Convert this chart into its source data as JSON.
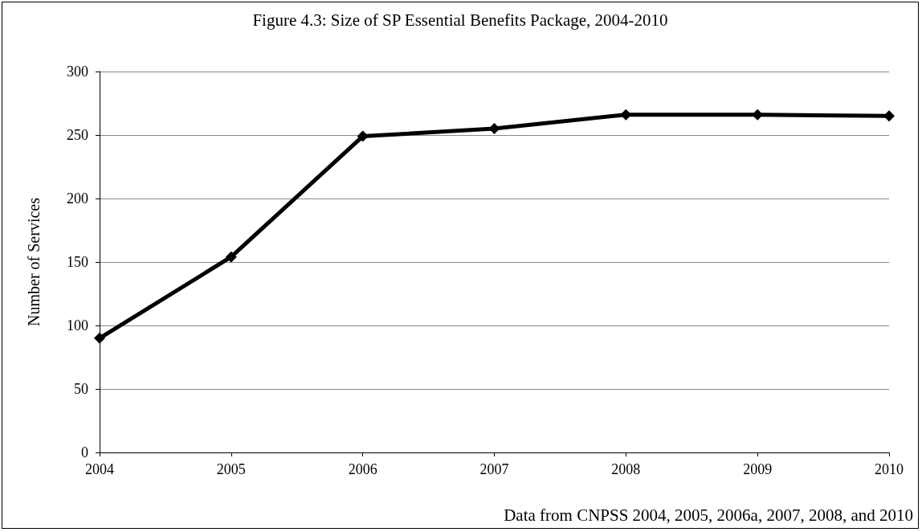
{
  "chart_data": {
    "type": "line",
    "title": "Figure 4.3: Size of SP Essential Benefits Package, 2004-2010",
    "ylabel": "Number of Services",
    "annotations": [
      "Data from CNPSS 2004, 2005, 2006a, 2007, 2008, and 2010"
    ],
    "categories": [
      "2004",
      "2005",
      "2006",
      "2007",
      "2008",
      "2009",
      "2010"
    ],
    "series": [
      {
        "color": "#000000",
        "values": [
          90,
          154,
          249,
          255,
          266,
          266,
          265
        ]
      }
    ],
    "ylim": [
      0,
      300
    ],
    "yticks": [
      0,
      50,
      100,
      150,
      200,
      250,
      300
    ],
    "grid": "y",
    "marker": "diamond",
    "line_style": "solid"
  }
}
